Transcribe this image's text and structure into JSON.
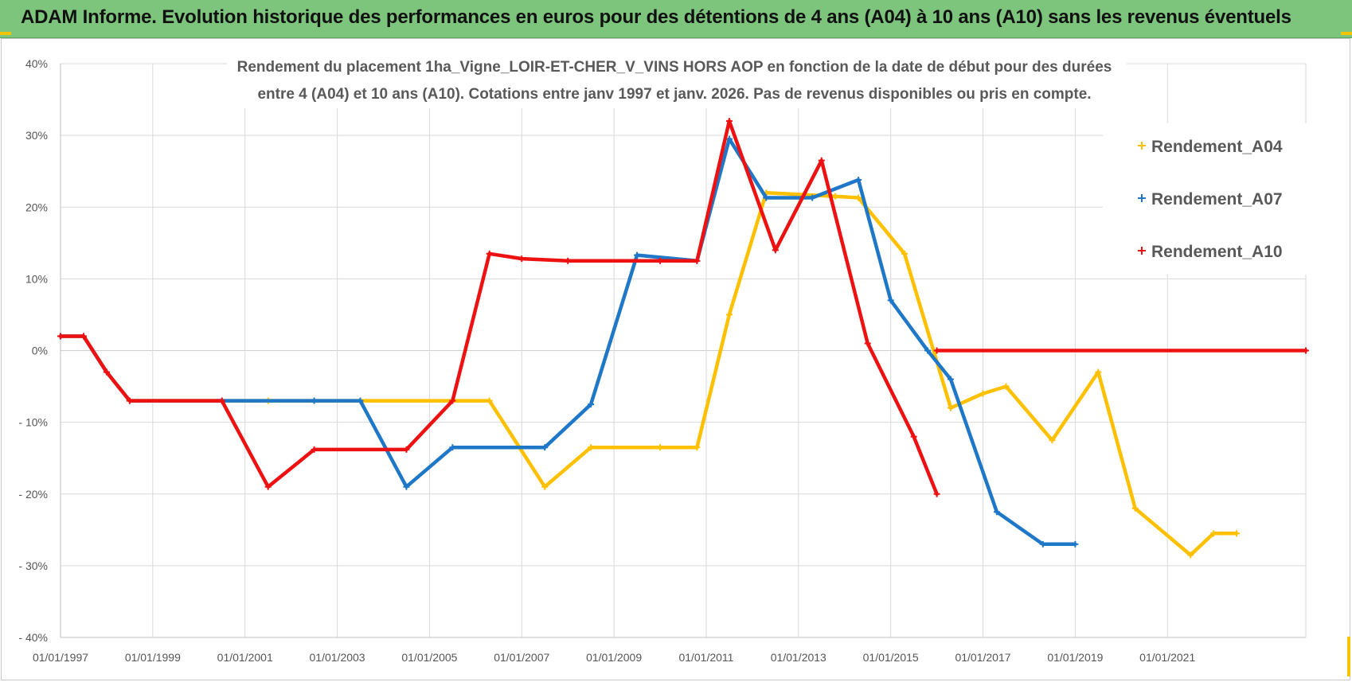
{
  "banner": {
    "title": "ADAM Informe. Evolution historique des performances en euros pour des détentions de 4 ans (A04) à 10 ans (A10) sans les revenus éventuels"
  },
  "colors": {
    "banner_bg": "#7dc57d",
    "accent": "#f5c400",
    "A04": "#ffc000",
    "A07": "#1f77c8",
    "A10": "#ee1111",
    "grid": "#d9d9d9"
  },
  "chart_data": {
    "type": "line",
    "title_line1": "Rendement du placement 1ha_Vigne_LOIR-ET-CHER_V_VINS HORS AOP en fonction de la date de début pour des durées",
    "title_line2": "entre 4 (A04) et 10 ans (A10).  Cotations entre janv 1997 et janv. 2026. Pas de revenus disponibles ou pris en compte.",
    "xlabel": "",
    "ylabel": "",
    "xlim": [
      1997.0,
      2024.0
    ],
    "ylim": [
      -40,
      40
    ],
    "y_ticks": [
      40,
      30,
      20,
      10,
      0,
      -10,
      -20,
      -30,
      -40
    ],
    "y_tick_labels": [
      "40%",
      "30%",
      "20%",
      "10%",
      "0%",
      "- 10%",
      "- 20%",
      "- 30%",
      "- 40%"
    ],
    "x_tick_positions": [
      1997,
      1999,
      2001,
      2003,
      2005,
      2007,
      2009,
      2011,
      2013,
      2015,
      2017,
      2019,
      2021
    ],
    "x_tick_labels": [
      "01/01/1997",
      "01/01/1999",
      "01/01/2001",
      "01/01/2003",
      "01/01/2005",
      "01/01/2007",
      "01/01/2009",
      "01/01/2011",
      "01/01/2013",
      "01/01/2015",
      "01/01/2017",
      "01/01/2019",
      "01/01/2021"
    ],
    "grid": true,
    "legend_position": "top-right",
    "series": [
      {
        "name": "Rendement_A04",
        "color": "#ffc000",
        "x": [
          1997.0,
          1997.5,
          1998.0,
          1998.5,
          2001.5,
          2003.5,
          2006.3,
          2007.5,
          2008.5,
          2010.0,
          2010.8,
          2011.5,
          2012.3,
          2013.8,
          2014.3,
          2015.3,
          2016.3,
          2017.0,
          2017.5,
          2018.5,
          2019.5,
          2020.3,
          2021.5,
          2022.0,
          2022.5
        ],
        "y": [
          2,
          2,
          -3,
          -7,
          -7,
          -7,
          -7,
          -19,
          -13.5,
          -13.5,
          -13.5,
          5,
          22,
          21.5,
          21.3,
          13.5,
          -8,
          -6,
          -5,
          -12.5,
          -3,
          -22,
          -28.5,
          -25.5,
          -25.5
        ]
      },
      {
        "name": "Rendement_A07",
        "color": "#1f77c8",
        "x": [
          1997.0,
          1997.5,
          1998.0,
          1998.5,
          2000.5,
          2002.5,
          2003.5,
          2004.5,
          2005.5,
          2007.5,
          2008.5,
          2009.5,
          2010.8,
          2011.5,
          2012.3,
          2013.3,
          2014.3,
          2015.0,
          2015.8,
          2016.3,
          2017.3,
          2018.3,
          2019.0
        ],
        "y": [
          2,
          2,
          -3,
          -7,
          -7,
          -7,
          -7,
          -19,
          -13.5,
          -13.5,
          -7.5,
          13.3,
          12.5,
          29.5,
          21.3,
          21.3,
          23.8,
          7,
          0,
          -4,
          -22.5,
          -27,
          -27
        ]
      },
      {
        "name": "Rendement_A10",
        "color": "#ee1111",
        "x": [
          1997.0,
          1997.5,
          1998.0,
          1998.5,
          2000.5,
          2001.5,
          2002.5,
          2004.5,
          2005.5,
          2006.3,
          2007.0,
          2008.0,
          2010.0,
          2010.8,
          2011.5,
          2012.5,
          2013.5,
          2014.5,
          2015.5,
          2016.0,
          2016.0,
          2024.0
        ],
        "y": [
          2,
          2,
          -3,
          -7,
          -7,
          -19,
          -13.8,
          -13.8,
          -7,
          13.5,
          12.8,
          12.5,
          12.5,
          12.5,
          32,
          14,
          26.5,
          1,
          -12,
          -20,
          0,
          0
        ]
      }
    ]
  }
}
